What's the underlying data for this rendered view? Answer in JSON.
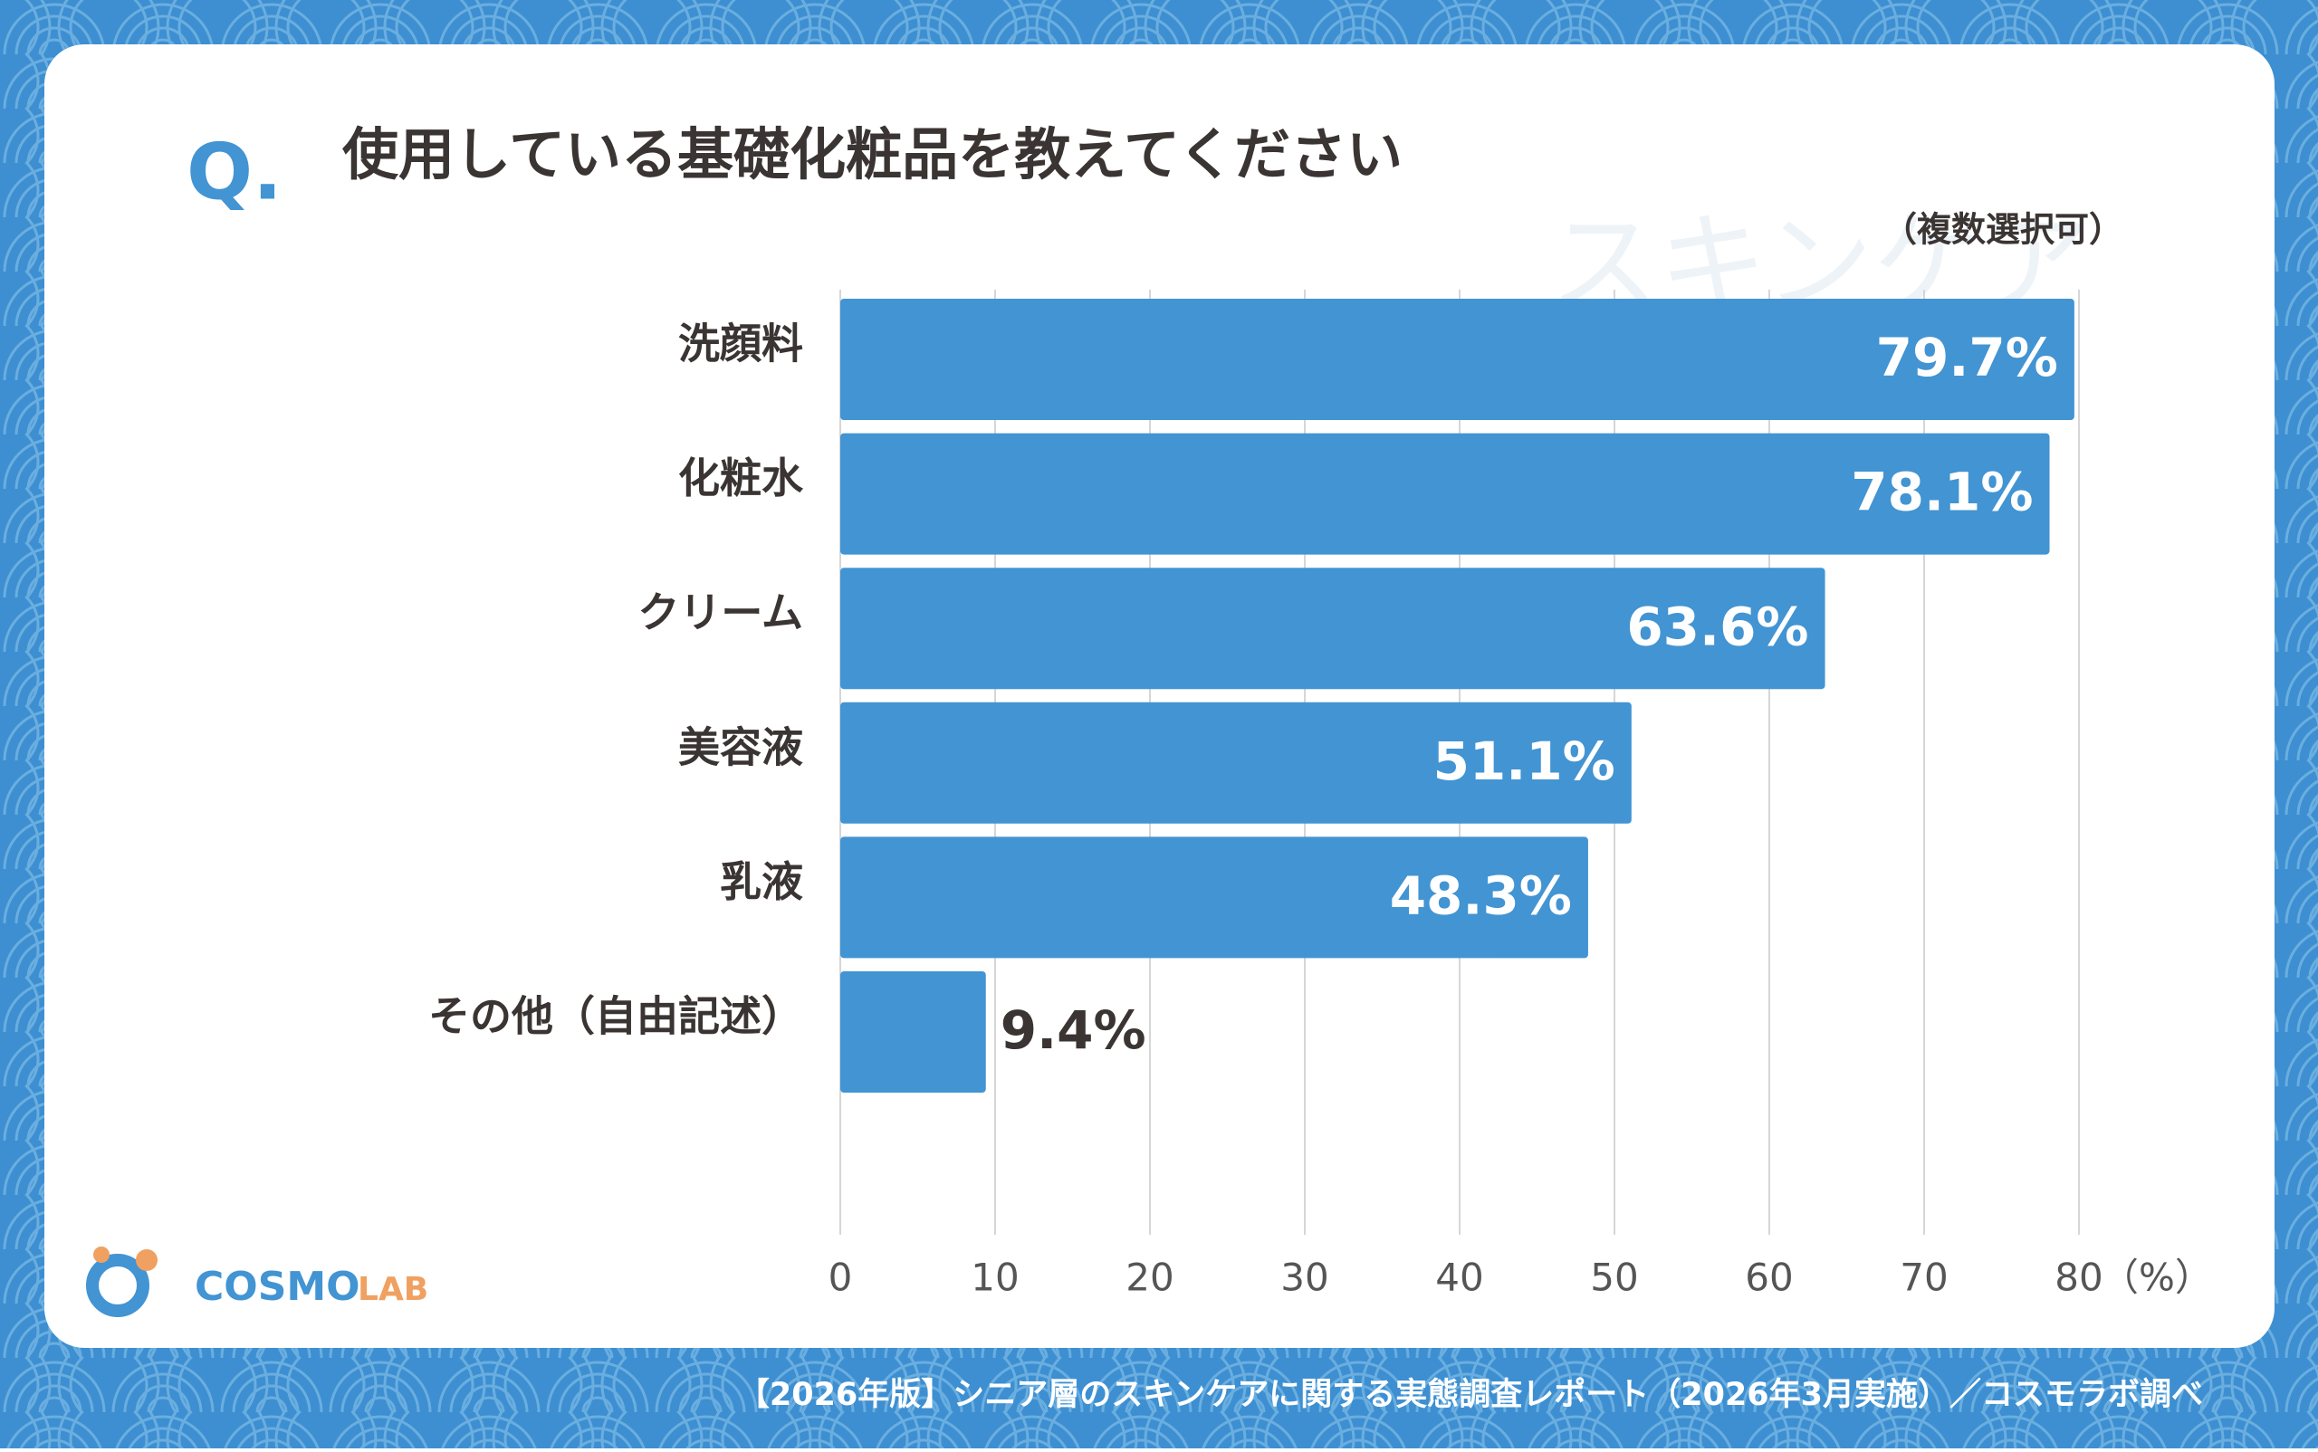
{
  "chart_data": {
    "type": "barh",
    "title_prefix": "Q.",
    "title": "使用している基礎化粧品を教えてください",
    "subtitle": "（複数選択可）",
    "watermark": "スキンケア",
    "categories": [
      "洗顔料",
      "化粧水",
      "クリーム",
      "美容液",
      "乳液",
      "その他（自由記述）"
    ],
    "values": [
      79.7,
      78.1,
      63.6,
      51.1,
      48.3,
      9.4
    ],
    "value_labels": [
      "79.7%",
      "78.1%",
      "63.6%",
      "51.1%",
      "48.3%",
      "9.4%"
    ],
    "color": "#4294d3",
    "xlim": [
      0,
      80
    ],
    "xticks": [
      0,
      10,
      20,
      30,
      40,
      50,
      60,
      70,
      80
    ],
    "xlabel": "（%）",
    "grid": true
  },
  "logo": {
    "name": "COSMO",
    "suffix": "LAB"
  },
  "footer": "【2026年版】シニア層のスキンケアに関する実態調査レポート（2026年3月実施）／コスモラボ調べ"
}
